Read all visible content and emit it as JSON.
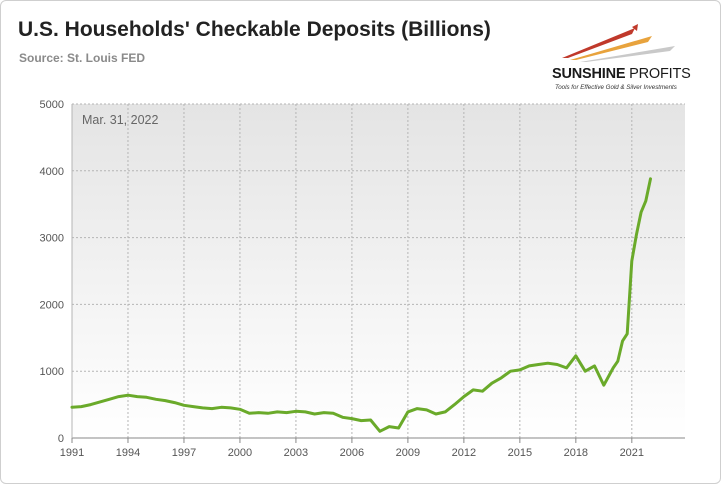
{
  "header": {
    "title": "U.S. Households' Checkable Deposits (Billions)",
    "source": "Source: St. Louis FED"
  },
  "logo": {
    "name_bold": "SUNSHINE",
    "name_thin": " PROFITS",
    "tagline": "Tools for Effective Gold & Silver Investments",
    "colors": [
      "#c0392b",
      "#e8a33d",
      "#b8b8b8"
    ]
  },
  "annotation": "Mar. 31, 2022",
  "chart_data": {
    "type": "line",
    "title": "U.S. Households' Checkable Deposits (Billions)",
    "xlabel": "",
    "ylabel": "",
    "xlim": [
      1991,
      2023.85
    ],
    "ylim": [
      0,
      5000
    ],
    "x_ticks": [
      "1991",
      "1994",
      "1997",
      "2000",
      "2003",
      "2006",
      "2009",
      "2012",
      "2015",
      "2018",
      "2021"
    ],
    "y_ticks": [
      "0",
      "1000",
      "2000",
      "3000",
      "4000",
      "5000"
    ],
    "grid": true,
    "line_color": "#6aaa2a",
    "series": [
      {
        "name": "",
        "x": [
          1991.0,
          1991.5,
          1992.0,
          1992.5,
          1993.0,
          1993.5,
          1994.0,
          1994.5,
          1995.0,
          1995.5,
          1996.0,
          1996.5,
          1997.0,
          1997.5,
          1998.0,
          1998.5,
          1999.0,
          1999.5,
          2000.0,
          2000.5,
          2001.0,
          2001.5,
          2002.0,
          2002.5,
          2003.0,
          2003.5,
          2004.0,
          2004.5,
          2005.0,
          2005.5,
          2006.0,
          2006.5,
          2007.0,
          2007.5,
          2008.0,
          2008.5,
          2009.0,
          2009.5,
          2010.0,
          2010.5,
          2011.0,
          2011.5,
          2012.0,
          2012.5,
          2013.0,
          2013.5,
          2014.0,
          2014.5,
          2015.0,
          2015.5,
          2016.0,
          2016.5,
          2017.0,
          2017.5,
          2018.0,
          2018.5,
          2019.0,
          2019.5,
          2020.0,
          2020.25,
          2020.5,
          2020.75,
          2021.0,
          2021.25,
          2021.5,
          2021.75,
          2022.0
        ],
        "y": [
          460,
          470,
          500,
          540,
          580,
          620,
          640,
          620,
          610,
          580,
          560,
          530,
          490,
          470,
          450,
          440,
          460,
          450,
          430,
          370,
          380,
          370,
          390,
          380,
          400,
          390,
          360,
          380,
          370,
          310,
          290,
          260,
          270,
          100,
          170,
          150,
          390,
          440,
          420,
          360,
          390,
          500,
          620,
          720,
          700,
          820,
          900,
          1000,
          1020,
          1080,
          1100,
          1120,
          1100,
          1050,
          1230,
          1000,
          1080,
          790,
          1050,
          1150,
          1450,
          1560,
          2650,
          3050,
          3380,
          3550,
          3880
        ]
      }
    ]
  }
}
